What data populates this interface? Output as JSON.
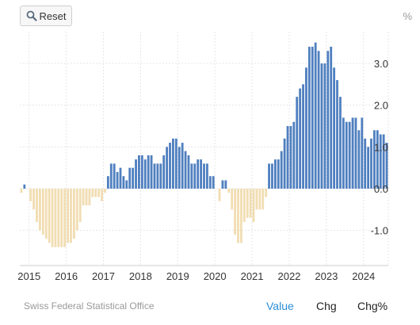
{
  "toolbar": {
    "reset_label": "Reset",
    "reset_icon": "zoom-reset-icon"
  },
  "unit_label": "%",
  "footer": {
    "source": "Swiss Federal Statistical Office",
    "tabs": [
      {
        "label": "Value",
        "active": true
      },
      {
        "label": "Chg",
        "active": false
      },
      {
        "label": "Chg%",
        "active": false
      }
    ]
  },
  "colors": {
    "positive": "#4f7fbf",
    "negative": "#f1ddb2",
    "active_tab": "#2a8fd8"
  },
  "chart_data": {
    "type": "bar",
    "title": "",
    "xlabel": "",
    "ylabel": "%",
    "ylim": [
      -1.8,
      3.8
    ],
    "grid": true,
    "x_start": "2014-10",
    "x_ticks": [
      "2015",
      "2016",
      "2017",
      "2018",
      "2019",
      "2020",
      "2021",
      "2022",
      "2023",
      "2024"
    ],
    "y_ticks": [
      3.0,
      2.0,
      1.0,
      0.0,
      -1.0
    ],
    "y_tick_labels": [
      "3.0",
      "2.0",
      "1.0",
      "0.0",
      "-1.0"
    ],
    "values": [
      -0.1,
      0.1,
      0.0,
      -0.3,
      -0.5,
      -0.8,
      -1.0,
      -1.1,
      -1.2,
      -1.3,
      -1.4,
      -1.4,
      -1.4,
      -1.4,
      -1.4,
      -1.3,
      -1.3,
      -1.2,
      -1.0,
      -0.8,
      -0.4,
      -0.4,
      -0.4,
      -0.2,
      -0.2,
      -0.2,
      -0.3,
      -0.1,
      0.3,
      0.6,
      0.6,
      0.4,
      0.5,
      0.3,
      0.2,
      0.5,
      0.5,
      0.7,
      0.8,
      0.8,
      0.7,
      0.8,
      0.8,
      0.6,
      0.6,
      0.6,
      0.8,
      1.0,
      1.1,
      1.2,
      1.2,
      1.0,
      1.1,
      0.9,
      0.8,
      0.6,
      0.6,
      0.7,
      0.7,
      0.6,
      0.6,
      0.3,
      0.3,
      0.0,
      -0.3,
      0.2,
      0.2,
      -0.1,
      -0.5,
      -1.1,
      -1.3,
      -1.3,
      -0.8,
      -0.7,
      -0.7,
      -0.8,
      -0.5,
      -0.5,
      -0.5,
      -0.2,
      0.6,
      0.6,
      0.7,
      0.7,
      0.9,
      1.2,
      1.5,
      1.5,
      1.6,
      2.2,
      2.4,
      2.5,
      2.9,
      3.4,
      3.4,
      3.5,
      3.3,
      3.0,
      3.0,
      3.3,
      3.4,
      2.9,
      2.6,
      2.2,
      1.7,
      1.6,
      1.6,
      1.7,
      1.7,
      1.4,
      1.7,
      1.2,
      1.0,
      1.2,
      1.4,
      1.4,
      1.3,
      1.3,
      1.1
    ]
  }
}
